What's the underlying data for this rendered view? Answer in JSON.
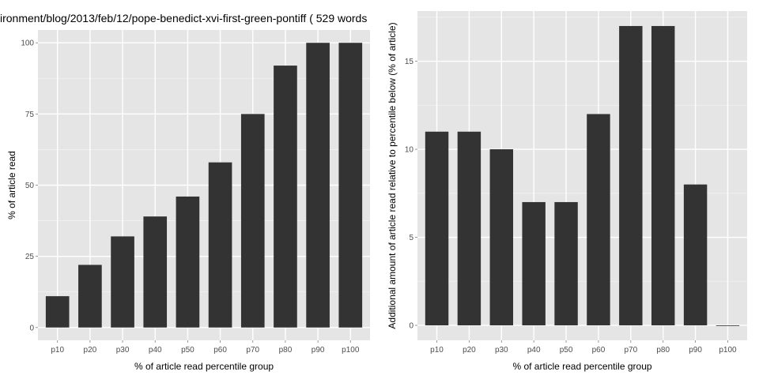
{
  "title": "ironment/blog/2013/feb/12/pope-benedict-xvi-first-green-pontiff ( 529 words",
  "colors": {
    "panel": "#e5e5e5",
    "grid_major": "#ffffff",
    "grid_minor": "#f2f2f2",
    "bar": "#333333",
    "tick_text": "#4d4d4d"
  },
  "chart_data": [
    {
      "type": "bar",
      "categories": [
        "p10",
        "p20",
        "p30",
        "p40",
        "p50",
        "p60",
        "p70",
        "p80",
        "p90",
        "p100"
      ],
      "values": [
        11,
        22,
        32,
        39,
        46,
        58,
        75,
        92,
        100,
        100
      ],
      "xlabel": "% of article read percentile group",
      "ylabel": "% of article read",
      "ylim": [
        -4.5,
        104.5
      ],
      "yticks": [
        0,
        25,
        50,
        75,
        100
      ],
      "grid": true
    },
    {
      "type": "bar",
      "categories": [
        "p10",
        "p20",
        "p30",
        "p40",
        "p50",
        "p60",
        "p70",
        "p80",
        "p90",
        "p100"
      ],
      "values": [
        11,
        11,
        10,
        7,
        7,
        12,
        17,
        17,
        8,
        0
      ],
      "xlabel": "% of article read percentile group",
      "ylabel": "Additional amount of article read relative to percentile below (% of article)",
      "ylim": [
        -0.85,
        17.85
      ],
      "yticks": [
        0,
        5,
        10,
        15
      ],
      "grid": true
    }
  ]
}
